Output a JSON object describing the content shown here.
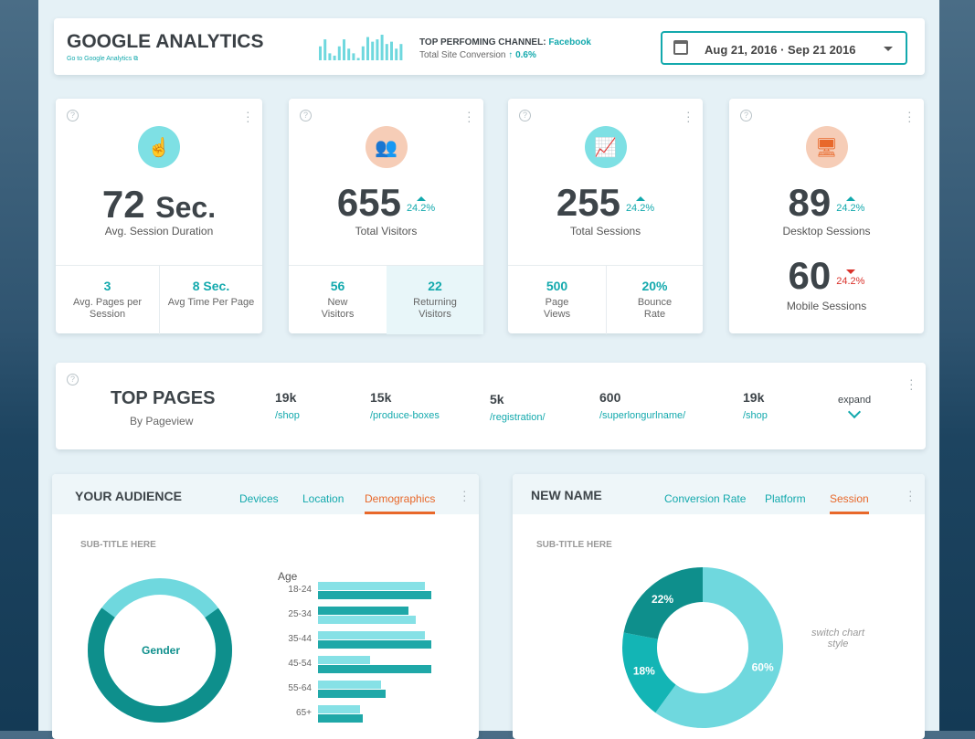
{
  "header": {
    "title": "GOOGLE ANALYTICS",
    "link": "Go to Google Analytics",
    "channel_label": "TOP PERFOMING CHANNEL:",
    "channel_value": "Facebook",
    "conversion_label": "Total Site Conversion",
    "conversion_value": "0.6%",
    "date_range": "Aug 21, 2016 · Sep 21 2016",
    "sparkline": [
      6,
      9,
      3,
      2,
      6,
      9,
      5,
      3,
      1,
      6,
      10,
      8,
      9,
      11,
      7,
      8,
      5,
      7
    ]
  },
  "stats": [
    {
      "value": "72",
      "unit": "Sec.",
      "label": "Avg. Session Duration",
      "icon": "pointer-hand-icon",
      "subs": [
        {
          "v": "3",
          "t": "Avg. Pages per Session"
        },
        {
          "v": "8 Sec.",
          "t": "Avg Time Per Page"
        }
      ]
    },
    {
      "value": "655",
      "change": "24.2%",
      "label": "Total Visitors",
      "icon": "users-icon",
      "subs": [
        {
          "v": "56",
          "t": "New Visitors"
        },
        {
          "v": "22",
          "t": "Returning Visitors"
        }
      ]
    },
    {
      "value": "255",
      "change": "24.2%",
      "label": "Total Sessions",
      "icon": "trend-chart-icon",
      "subs": [
        {
          "v": "500",
          "t": "Page Views"
        },
        {
          "v": "20%",
          "t": "Bounce Rate"
        }
      ]
    },
    {
      "value": "89",
      "change": "24.2%",
      "label": "Desktop Sessions",
      "value2": "60",
      "change2": "24.2%",
      "label2": "Mobile Sessions",
      "icon": "devices-icon"
    }
  ],
  "top_pages": {
    "title": "TOP PAGES",
    "subtitle": "By Pageview",
    "expand": "expand",
    "items": [
      {
        "n": "19k",
        "u": "/shop"
      },
      {
        "n": "15k",
        "u": "/produce-boxes"
      },
      {
        "n": "5k",
        "u": "/registration/"
      },
      {
        "n": "600",
        "u": "/superlongurlname/"
      },
      {
        "n": "19k",
        "u": "/shop"
      }
    ]
  },
  "audience": {
    "title": "YOUR AUDIENCE",
    "tabs": [
      "Devices",
      "Location",
      "Demographics"
    ],
    "active_tab": "Demographics",
    "subtitle": "SUB-TITLE HERE",
    "donut_label": "Gender",
    "donut_segments": [
      70,
      30
    ],
    "age_label": "Age",
    "chart_data": {
      "type": "bar",
      "orientation": "horizontal",
      "categories": [
        "18-24",
        "25-34",
        "35-44",
        "45-54",
        "55-64",
        "65+"
      ],
      "series": [
        {
          "values": [
            117,
            107,
            117,
            57,
            69,
            46
          ]
        },
        {
          "values": [
            124,
            99,
            124,
            124,
            74,
            49
          ]
        }
      ]
    }
  },
  "newname": {
    "title": "NEW NAME",
    "tabs": [
      "Conversion Rate",
      "Platform",
      "Session"
    ],
    "active_tab": "Session",
    "subtitle": "SUB-TITLE HERE",
    "switch": "switch chart style",
    "chart_data": {
      "type": "pie",
      "style": "donut",
      "labels": [
        "60%",
        "18%",
        "22%"
      ],
      "values": [
        60,
        18,
        22
      ]
    }
  },
  "colors": {
    "teal": "#13a9ad",
    "light_teal": "#6fd8de",
    "dark_teal": "#0e8f8c",
    "orange": "#e8682a",
    "red": "#d9322b"
  }
}
